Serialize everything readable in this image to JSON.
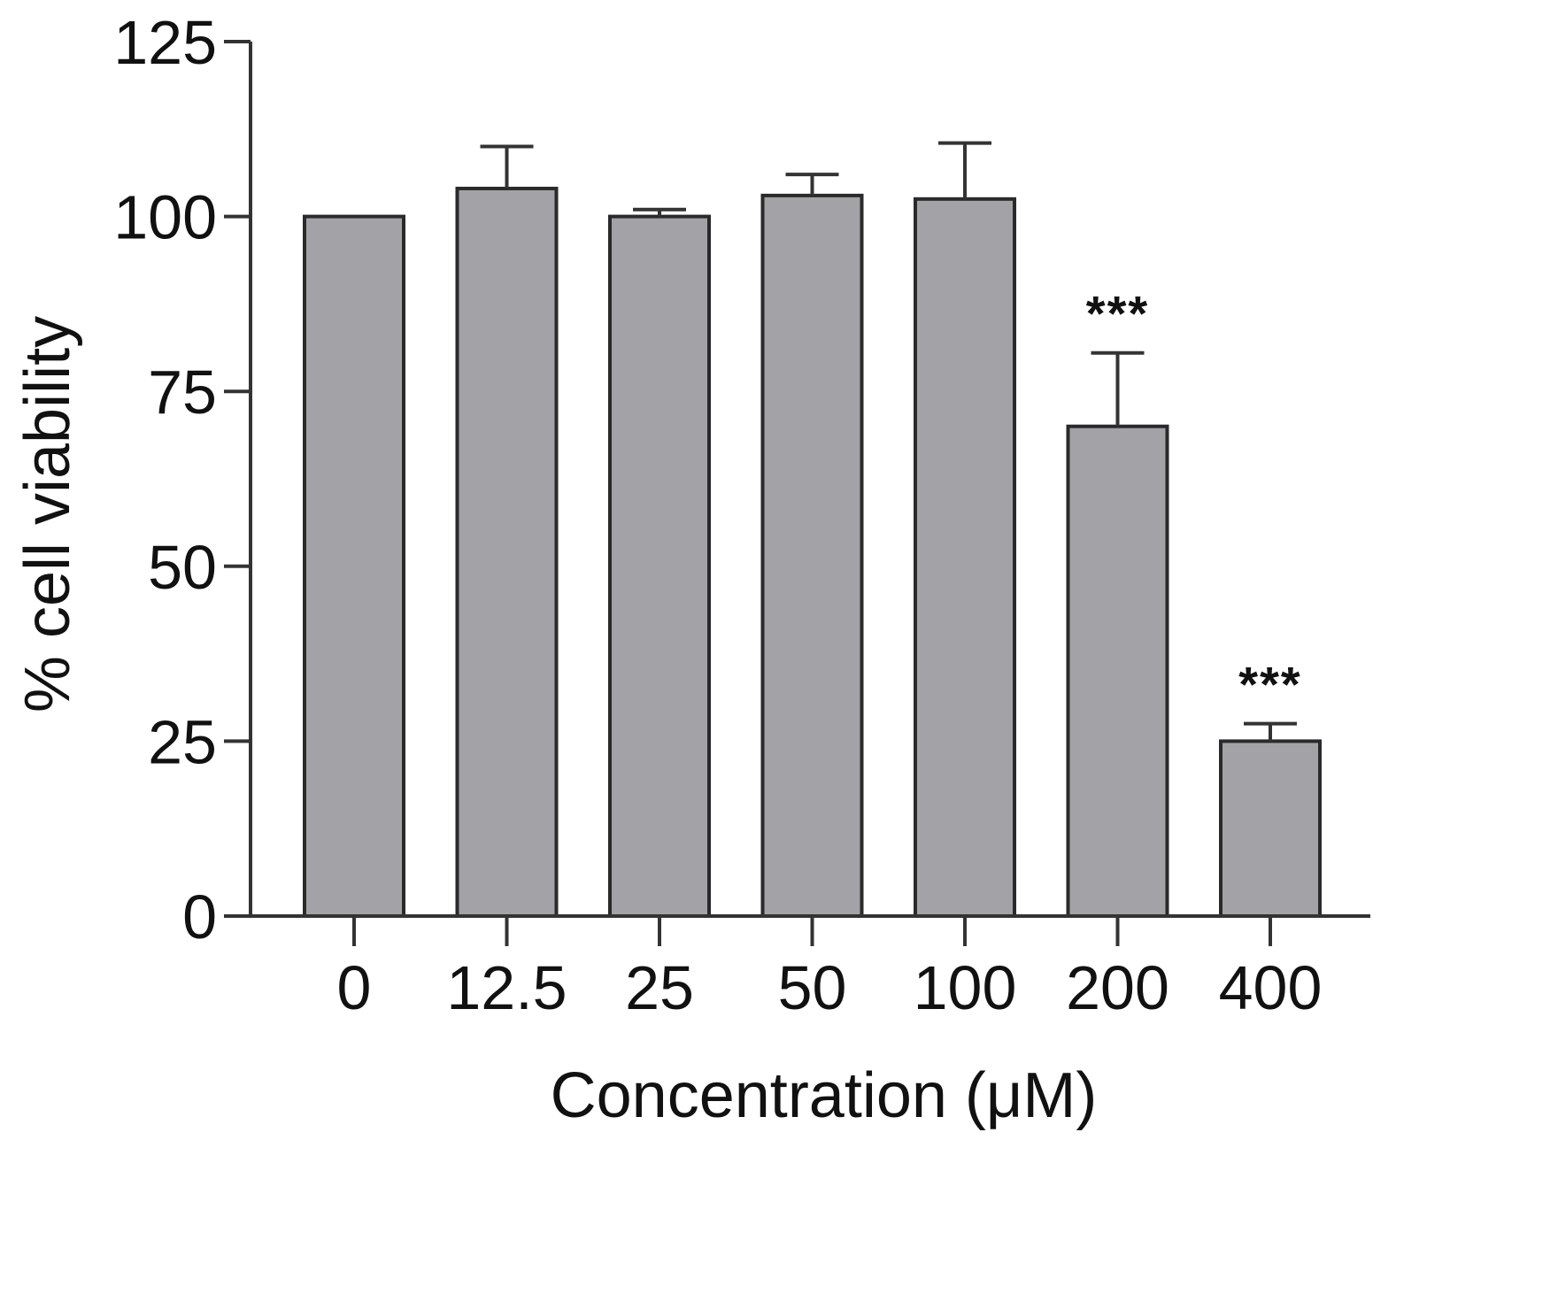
{
  "chart_data": {
    "type": "bar",
    "categories": [
      "0",
      "12.5",
      "25",
      "50",
      "100",
      "200",
      "400"
    ],
    "values": [
      100,
      104,
      100,
      103,
      102.5,
      70,
      25
    ],
    "errors": [
      0,
      6,
      1,
      3,
      8,
      10.5,
      2.5
    ],
    "significance": [
      "",
      "",
      "",
      "",
      "",
      "***",
      "***"
    ],
    "xlabel": "Concentration (μM)",
    "ylabel": "% cell viability",
    "ylim": [
      0,
      125
    ],
    "yticks": [
      0,
      25,
      50,
      75,
      100,
      125
    ],
    "ytick_labels": [
      "0",
      "25",
      "50",
      "75",
      "100",
      "125"
    ],
    "grid": false,
    "bar_color": "#a3a3a7",
    "bar_edge_color": "#2a2a2a"
  }
}
